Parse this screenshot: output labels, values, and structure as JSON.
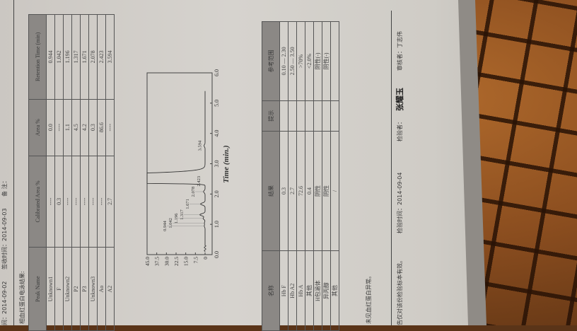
{
  "header": {
    "collect_time": "间：2014-09-02",
    "receive_time": "签收时间：2014-09-03",
    "remark": "备 注："
  },
  "section_title": "相血红蛋白电泳结果:",
  "peak_table": {
    "columns": [
      "Peak Name",
      "Calibrated Area %",
      "Area %",
      "Retention Time (min)"
    ],
    "rows": [
      [
        "Unknown1",
        "----",
        "0.0",
        "0.944"
      ],
      [
        "F",
        "0.3",
        "----",
        "1.042"
      ],
      [
        "Unknown2",
        "----",
        "1.1",
        "1.196"
      ],
      [
        "P2",
        "----",
        "4.5",
        "1.317"
      ],
      [
        "P3",
        "----",
        "4.2",
        "1.671"
      ],
      [
        "Unknown3",
        "----",
        "0.3",
        "2.078"
      ],
      [
        "Ao",
        "----",
        "86.6",
        "2.423"
      ],
      [
        "A2",
        "2.7",
        "----",
        "3.594"
      ]
    ]
  },
  "chart_data": {
    "type": "line",
    "xlabel": "Time (min.)",
    "ylabel": "",
    "xlim": [
      0,
      6
    ],
    "ylim": [
      0,
      45
    ],
    "x_ticks": [
      "0.0",
      "1.0",
      "2.0",
      "3.0",
      "4.0",
      "5.0",
      "6.0"
    ],
    "y_ticks": [
      "45.0",
      "37.5",
      "30.0",
      "22.5",
      "15.0",
      "7.5",
      "0"
    ],
    "grid": false,
    "peaks": [
      {
        "label": "0.944",
        "time": 0.944,
        "height": 0.6
      },
      {
        "label": "1.042",
        "time": 1.042,
        "height": 0.5
      },
      {
        "label": "1.196",
        "time": 1.196,
        "height": 1.5
      },
      {
        "label": "1.317",
        "time": 1.317,
        "height": 4.0
      },
      {
        "label": "1.671",
        "time": 1.671,
        "height": 3.5
      },
      {
        "label": "2.078",
        "time": 2.078,
        "height": 1.2
      },
      {
        "label": "2.423",
        "time": 2.423,
        "height": 45
      },
      {
        "label": "3.594",
        "time": 3.594,
        "height": 0.8
      }
    ]
  },
  "result_table": {
    "columns": [
      "名称",
      "结果",
      "提示",
      "参考范围"
    ],
    "rows": [
      [
        "Hb F",
        "0.3",
        "",
        "0.10 — 2.30"
      ],
      [
        "Hb A2",
        "2.7",
        "",
        "2.50 — 3.50"
      ],
      [
        "Hb A",
        "72.6",
        "",
        ">70%"
      ],
      [
        "其他",
        "0.4",
        "",
        "<2.0%"
      ],
      [
        "H包涵体",
        "阴性",
        "",
        "阴性(-)"
      ],
      [
        "异丙醇",
        "阴性",
        "",
        "阴性(-)"
      ],
      [
        "其他",
        "/",
        "",
        ""
      ]
    ]
  },
  "conclusion": "未见血红蛋白异常。",
  "footer": {
    "note": "告仅对该份检验标本有效。",
    "test_time": "检验时间：2014-09-04",
    "tester_label": "检验者：",
    "tester_signature": "张耀玉",
    "reviewer": "审核者：丁志伟"
  },
  "colors": {
    "paper": "#d3d0ca",
    "header_fill": "#8b8885",
    "wood": "#8a4d1f"
  }
}
